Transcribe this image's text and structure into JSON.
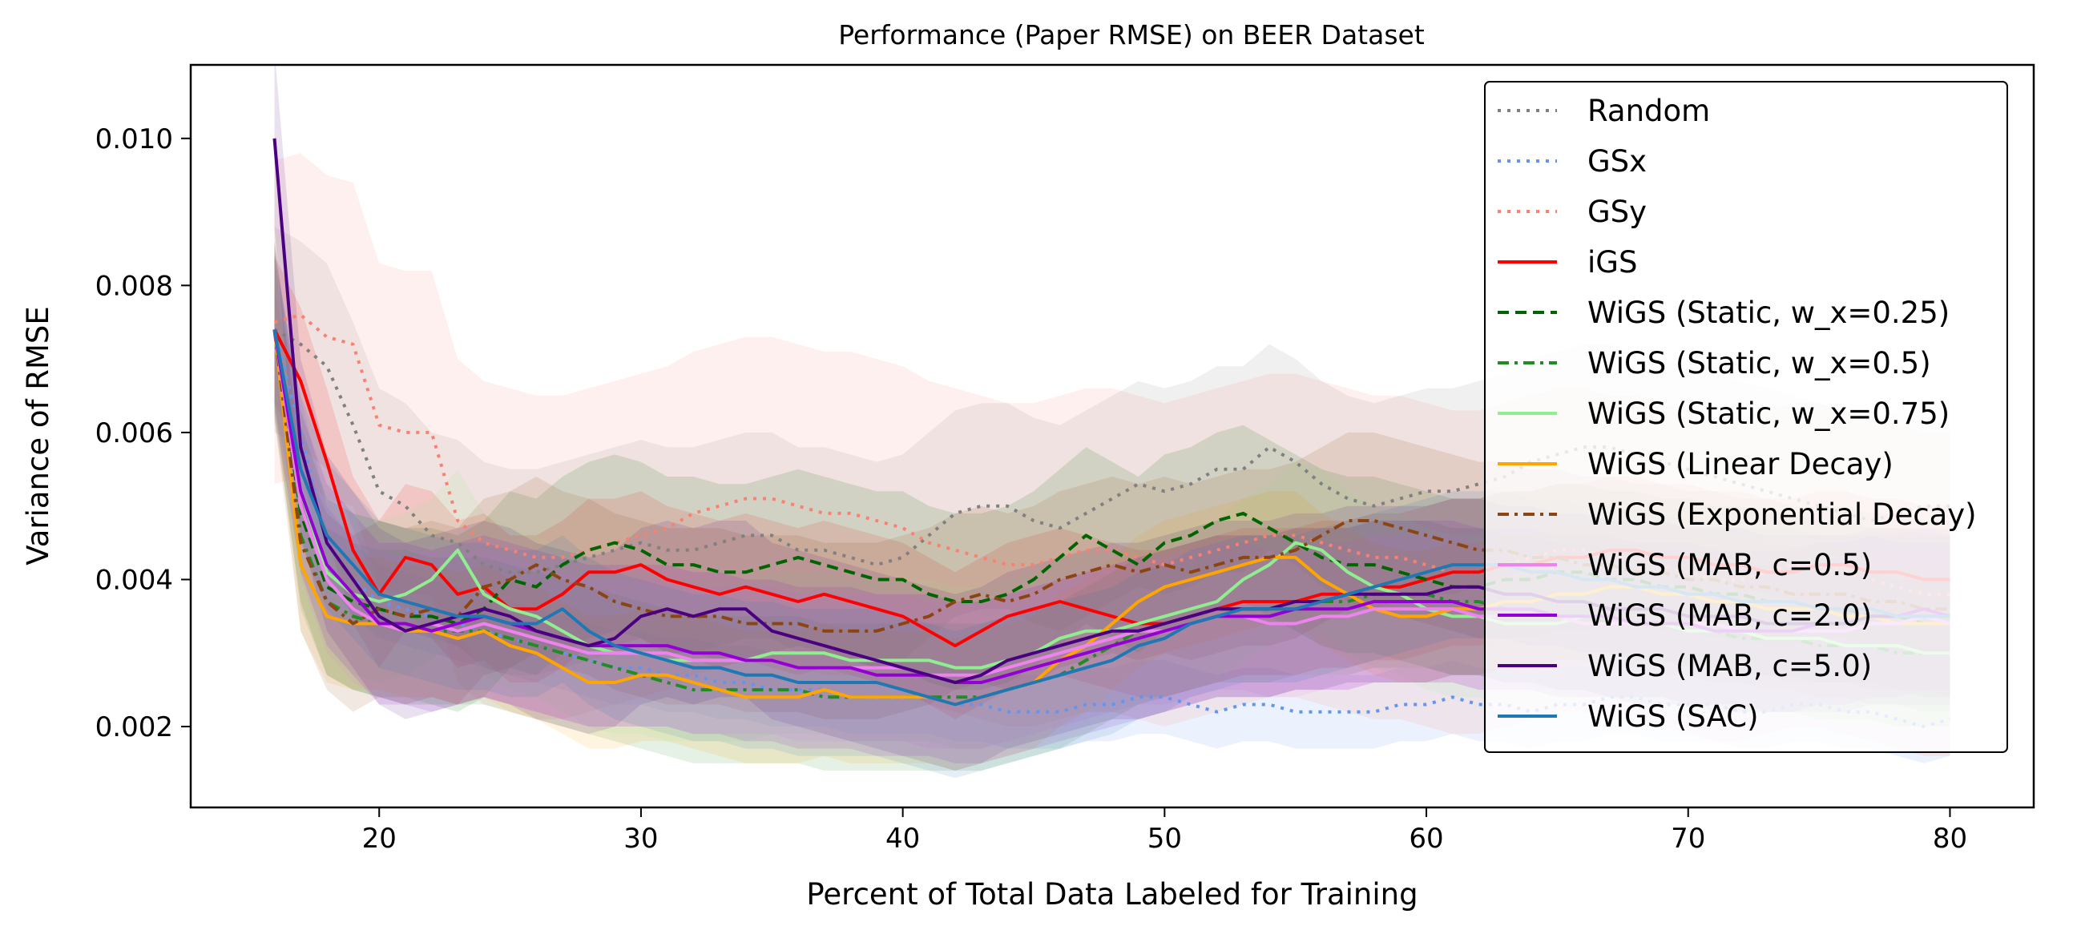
{
  "chart_data": {
    "type": "line",
    "title": "Performance (Paper RMSE) on BEER Dataset",
    "xlabel": "Percent of Total Data Labeled for Training",
    "ylabel": "Variance of RMSE",
    "xlim": [
      12.8,
      83.2
    ],
    "ylim": [
      0.0009,
      0.011
    ],
    "xticks": [
      20,
      30,
      40,
      50,
      60,
      70,
      80
    ],
    "xtick_labels": [
      "20",
      "30",
      "40",
      "50",
      "60",
      "70",
      "80"
    ],
    "yticks": [
      0.002,
      0.004,
      0.006,
      0.008,
      0.01
    ],
    "ytick_labels": [
      "0.002",
      "0.004",
      "0.006",
      "0.008",
      "0.010"
    ],
    "grid": false,
    "legend_position": "top-right",
    "x": [
      16,
      17,
      18,
      19,
      20,
      21,
      22,
      23,
      24,
      25,
      26,
      27,
      28,
      29,
      30,
      31,
      32,
      33,
      34,
      35,
      36,
      37,
      38,
      39,
      40,
      41,
      42,
      43,
      44,
      45,
      46,
      47,
      48,
      49,
      50,
      51,
      52,
      53,
      54,
      55,
      56,
      57,
      58,
      59,
      60,
      61,
      62,
      63,
      64,
      65,
      66,
      67,
      68,
      69,
      70,
      71,
      72,
      73,
      74,
      75,
      76,
      77,
      78,
      79,
      80
    ],
    "series": [
      {
        "name": "Random",
        "color": "#808080",
        "style": "dotted",
        "band_width": 0.0014,
        "values": [
          0.0074,
          0.0072,
          0.0069,
          0.0061,
          0.0052,
          0.005,
          0.0046,
          0.0045,
          0.0042,
          0.0041,
          0.0041,
          0.0042,
          0.0043,
          0.0044,
          0.0045,
          0.0044,
          0.0044,
          0.0045,
          0.0046,
          0.0046,
          0.0044,
          0.0044,
          0.0043,
          0.0042,
          0.0043,
          0.0046,
          0.0049,
          0.005,
          0.005,
          0.0048,
          0.0047,
          0.0049,
          0.0051,
          0.0053,
          0.0052,
          0.0053,
          0.0055,
          0.0055,
          0.0058,
          0.0056,
          0.0053,
          0.0051,
          0.005,
          0.0051,
          0.0052,
          0.0052,
          0.0053,
          0.0054,
          0.0056,
          0.0057,
          0.0058,
          0.0058,
          0.0057,
          0.0056,
          0.0055,
          0.0054,
          0.0053,
          0.0052,
          0.0051,
          0.005,
          0.0049,
          0.0048,
          0.0049,
          0.005,
          0.005
        ]
      },
      {
        "name": "GSx",
        "color": "#6495ed",
        "style": "dotted",
        "band_width": 0.0005,
        "values": [
          0.0074,
          0.006,
          0.0045,
          0.004,
          0.0037,
          0.0036,
          0.0035,
          0.0034,
          0.0033,
          0.0032,
          0.0031,
          0.003,
          0.0029,
          0.0028,
          0.0028,
          0.0027,
          0.0027,
          0.0026,
          0.0026,
          0.0025,
          0.0025,
          0.0025,
          0.0024,
          0.0024,
          0.0024,
          0.0024,
          0.0023,
          0.0023,
          0.0022,
          0.0022,
          0.0022,
          0.0023,
          0.0023,
          0.0024,
          0.0024,
          0.0023,
          0.0022,
          0.0023,
          0.0023,
          0.0022,
          0.0022,
          0.0022,
          0.0022,
          0.0023,
          0.0023,
          0.0024,
          0.0023,
          0.0023,
          0.0022,
          0.0023,
          0.0023,
          0.0024,
          0.0024,
          0.0023,
          0.0023,
          0.0023,
          0.0022,
          0.0022,
          0.0023,
          0.0023,
          0.0022,
          0.0022,
          0.0021,
          0.002,
          0.0021
        ]
      },
      {
        "name": "GSy",
        "color": "#fa8072",
        "style": "dotted",
        "band_width": 0.0022,
        "values": [
          0.0075,
          0.0076,
          0.0073,
          0.0072,
          0.0061,
          0.006,
          0.006,
          0.0048,
          0.0045,
          0.0044,
          0.0043,
          0.0043,
          0.0044,
          0.0045,
          0.0046,
          0.0047,
          0.0049,
          0.005,
          0.0051,
          0.0051,
          0.005,
          0.0049,
          0.0049,
          0.0048,
          0.0047,
          0.0045,
          0.0044,
          0.0043,
          0.0042,
          0.0042,
          0.0043,
          0.0044,
          0.0044,
          0.0043,
          0.0042,
          0.0043,
          0.0044,
          0.0045,
          0.0046,
          0.0046,
          0.0045,
          0.0044,
          0.0043,
          0.0043,
          0.0042,
          0.0041,
          0.0041,
          0.0042,
          0.0043,
          0.0044,
          0.0044,
          0.0043,
          0.0043,
          0.0042,
          0.0041,
          0.004,
          0.004,
          0.0041,
          0.0042,
          0.0042,
          0.0041,
          0.004,
          0.0039,
          0.0038,
          0.0038
        ]
      },
      {
        "name": "iGS",
        "color": "#ff0000",
        "style": "solid",
        "band_width": 0.001,
        "values": [
          0.0074,
          0.0067,
          0.0056,
          0.0044,
          0.0038,
          0.0043,
          0.0042,
          0.0038,
          0.0039,
          0.0036,
          0.0036,
          0.0038,
          0.0041,
          0.0041,
          0.0042,
          0.004,
          0.0039,
          0.0038,
          0.0039,
          0.0038,
          0.0037,
          0.0038,
          0.0037,
          0.0036,
          0.0035,
          0.0033,
          0.0031,
          0.0033,
          0.0035,
          0.0036,
          0.0037,
          0.0036,
          0.0035,
          0.0034,
          0.0034,
          0.0035,
          0.0036,
          0.0037,
          0.0037,
          0.0037,
          0.0038,
          0.0038,
          0.0039,
          0.0039,
          0.004,
          0.0041,
          0.0041,
          0.0042,
          0.0042,
          0.0043,
          0.0043,
          0.0044,
          0.0044,
          0.0043,
          0.0043,
          0.0042,
          0.0042,
          0.0041,
          0.0041,
          0.0042,
          0.0042,
          0.0041,
          0.0041,
          0.004,
          0.004
        ]
      },
      {
        "name": "WiGS (Static, w_x=0.25)",
        "color": "#006400",
        "style": "dashed",
        "band_width": 0.0012,
        "values": [
          0.0074,
          0.0049,
          0.0039,
          0.0037,
          0.0036,
          0.0035,
          0.0035,
          0.0034,
          0.0036,
          0.004,
          0.0039,
          0.0042,
          0.0044,
          0.0045,
          0.0044,
          0.0042,
          0.0042,
          0.0041,
          0.0041,
          0.0042,
          0.0043,
          0.0042,
          0.0041,
          0.004,
          0.004,
          0.0038,
          0.0037,
          0.0037,
          0.0038,
          0.004,
          0.0043,
          0.0046,
          0.0044,
          0.0042,
          0.0045,
          0.0046,
          0.0048,
          0.0049,
          0.0047,
          0.0045,
          0.0043,
          0.0042,
          0.0042,
          0.0041,
          0.004,
          0.0039,
          0.0039,
          0.004,
          0.004,
          0.0041,
          0.0041,
          0.004,
          0.004,
          0.0039,
          0.0039,
          0.0038,
          0.0038,
          0.0037,
          0.0037,
          0.0036,
          0.0036,
          0.0035,
          0.0035,
          0.0034,
          0.0034
        ]
      },
      {
        "name": "WiGS (Static, w_x=0.5)",
        "color": "#228b22",
        "style": "dashdot",
        "band_width": 0.001,
        "values": [
          0.0074,
          0.0046,
          0.0037,
          0.0035,
          0.0034,
          0.0034,
          0.0033,
          0.0033,
          0.0033,
          0.0032,
          0.0031,
          0.003,
          0.0029,
          0.0028,
          0.0027,
          0.0026,
          0.0025,
          0.0025,
          0.0025,
          0.0025,
          0.0025,
          0.0024,
          0.0024,
          0.0024,
          0.0024,
          0.0024,
          0.0024,
          0.0024,
          0.0025,
          0.0026,
          0.0027,
          0.0029,
          0.0031,
          0.0033,
          0.0034,
          0.0035,
          0.0036,
          0.0036,
          0.0036,
          0.0037,
          0.0037,
          0.0037,
          0.0038,
          0.0038,
          0.0038,
          0.0037,
          0.0037,
          0.0036,
          0.0036,
          0.0035,
          0.0035,
          0.0034,
          0.0034,
          0.0034,
          0.0033,
          0.0033,
          0.0032,
          0.0032,
          0.0032,
          0.0031,
          0.0031,
          0.0031,
          0.003,
          0.003,
          0.003
        ]
      },
      {
        "name": "WiGS (Static, w_x=0.75)",
        "color": "#90ee90",
        "style": "solid",
        "band_width": 0.0011,
        "values": [
          0.0074,
          0.0052,
          0.0041,
          0.0038,
          0.0037,
          0.0038,
          0.004,
          0.0044,
          0.0038,
          0.0036,
          0.0035,
          0.0033,
          0.0031,
          0.003,
          0.003,
          0.0029,
          0.0029,
          0.0029,
          0.0029,
          0.003,
          0.003,
          0.003,
          0.0029,
          0.0029,
          0.0029,
          0.0029,
          0.0028,
          0.0028,
          0.0029,
          0.003,
          0.0032,
          0.0033,
          0.0033,
          0.0034,
          0.0035,
          0.0036,
          0.0037,
          0.004,
          0.0042,
          0.0045,
          0.0044,
          0.0041,
          0.0039,
          0.0038,
          0.0036,
          0.0035,
          0.0035,
          0.0034,
          0.0034,
          0.0034,
          0.0035,
          0.0035,
          0.0034,
          0.0034,
          0.0033,
          0.0033,
          0.0033,
          0.0032,
          0.0032,
          0.0032,
          0.0031,
          0.0031,
          0.0031,
          0.003,
          0.003
        ]
      },
      {
        "name": "WiGS (Linear Decay)",
        "color": "#ffa500",
        "style": "solid",
        "band_width": 0.0009,
        "values": [
          0.0074,
          0.0042,
          0.0035,
          0.0034,
          0.0034,
          0.0033,
          0.0033,
          0.0032,
          0.0033,
          0.0031,
          0.003,
          0.0028,
          0.0026,
          0.0026,
          0.0027,
          0.0027,
          0.0026,
          0.0025,
          0.0024,
          0.0024,
          0.0024,
          0.0025,
          0.0024,
          0.0024,
          0.0024,
          0.0024,
          0.0023,
          0.0024,
          0.0025,
          0.0026,
          0.0029,
          0.0031,
          0.0034,
          0.0037,
          0.0039,
          0.004,
          0.0041,
          0.0042,
          0.0043,
          0.0043,
          0.004,
          0.0038,
          0.0036,
          0.0035,
          0.0035,
          0.0036,
          0.0036,
          0.0037,
          0.0037,
          0.0038,
          0.0038,
          0.0039,
          0.0039,
          0.0038,
          0.0038,
          0.0037,
          0.0037,
          0.0036,
          0.0036,
          0.0036,
          0.0035,
          0.0035,
          0.0034,
          0.0034,
          0.0034
        ]
      },
      {
        "name": "WiGS (Exponential Decay)",
        "color": "#8b4513",
        "style": "dashdot",
        "band_width": 0.0012,
        "values": [
          0.0074,
          0.0045,
          0.0037,
          0.0034,
          0.0036,
          0.0035,
          0.0036,
          0.0035,
          0.0039,
          0.004,
          0.0042,
          0.004,
          0.0039,
          0.0037,
          0.0036,
          0.0035,
          0.0035,
          0.0035,
          0.0034,
          0.0034,
          0.0034,
          0.0033,
          0.0033,
          0.0033,
          0.0034,
          0.0035,
          0.0037,
          0.0038,
          0.0037,
          0.0038,
          0.004,
          0.0041,
          0.0042,
          0.0041,
          0.0042,
          0.0041,
          0.0042,
          0.0043,
          0.0043,
          0.0044,
          0.0046,
          0.0048,
          0.0048,
          0.0047,
          0.0046,
          0.0045,
          0.0044,
          0.0044,
          0.0043,
          0.0043,
          0.0042,
          0.0042,
          0.0041,
          0.0041,
          0.004,
          0.004,
          0.0039,
          0.0039,
          0.0038,
          0.0038,
          0.0038,
          0.0037,
          0.0037,
          0.0036,
          0.0036
        ]
      },
      {
        "name": "WiGS (MAB, c=0.5)",
        "color": "#ee82ee",
        "style": "solid",
        "band_width": 0.001,
        "values": [
          0.0074,
          0.005,
          0.004,
          0.0036,
          0.0034,
          0.0033,
          0.0034,
          0.0033,
          0.0034,
          0.0033,
          0.0032,
          0.0031,
          0.003,
          0.003,
          0.003,
          0.003,
          0.0029,
          0.0029,
          0.0029,
          0.0029,
          0.0028,
          0.0028,
          0.0028,
          0.0028,
          0.0028,
          0.0027,
          0.0027,
          0.0027,
          0.0028,
          0.0029,
          0.003,
          0.0031,
          0.0032,
          0.0033,
          0.0033,
          0.0034,
          0.0035,
          0.0035,
          0.0034,
          0.0034,
          0.0035,
          0.0035,
          0.0036,
          0.0036,
          0.0036,
          0.0036,
          0.0035,
          0.0035,
          0.0035,
          0.0035,
          0.0034,
          0.0034,
          0.0034,
          0.0034,
          0.0034,
          0.0034,
          0.0033,
          0.0033,
          0.0033,
          0.0033,
          0.0033,
          0.0034,
          0.0034,
          0.0035,
          0.0034
        ]
      },
      {
        "name": "WiGS (MAB, c=2.0)",
        "color": "#9400d3",
        "style": "solid",
        "band_width": 0.0011,
        "values": [
          0.0074,
          0.0052,
          0.0042,
          0.0038,
          0.0034,
          0.0034,
          0.0033,
          0.0034,
          0.0035,
          0.0034,
          0.0033,
          0.0032,
          0.0031,
          0.0031,
          0.0031,
          0.0031,
          0.003,
          0.003,
          0.0029,
          0.0029,
          0.0028,
          0.0028,
          0.0028,
          0.0027,
          0.0027,
          0.0027,
          0.0026,
          0.0026,
          0.0027,
          0.0028,
          0.0029,
          0.003,
          0.0031,
          0.0032,
          0.0033,
          0.0034,
          0.0035,
          0.0035,
          0.0035,
          0.0036,
          0.0036,
          0.0036,
          0.0037,
          0.0037,
          0.0037,
          0.0037,
          0.0036,
          0.0036,
          0.0036,
          0.0035,
          0.0035,
          0.0035,
          0.0034,
          0.0034,
          0.0034,
          0.0033,
          0.0033,
          0.0033,
          0.0033,
          0.0034,
          0.0034,
          0.0035,
          0.0035,
          0.0036,
          0.0035
        ]
      },
      {
        "name": "WiGS (MAB, c=5.0)",
        "color": "#4b0082",
        "style": "solid",
        "band_width": 0.0012,
        "values": [
          0.01,
          0.0058,
          0.0045,
          0.004,
          0.0035,
          0.0033,
          0.0034,
          0.0035,
          0.0036,
          0.0035,
          0.0033,
          0.0032,
          0.0031,
          0.0032,
          0.0035,
          0.0036,
          0.0035,
          0.0036,
          0.0036,
          0.0033,
          0.0032,
          0.0031,
          0.003,
          0.0029,
          0.0028,
          0.0027,
          0.0026,
          0.0027,
          0.0029,
          0.003,
          0.0031,
          0.0032,
          0.0033,
          0.0033,
          0.0034,
          0.0035,
          0.0036,
          0.0036,
          0.0036,
          0.0037,
          0.0037,
          0.0038,
          0.0038,
          0.0038,
          0.0038,
          0.0039,
          0.0039,
          0.0038,
          0.0038,
          0.0037,
          0.0037,
          0.0036,
          0.0036,
          0.0036,
          0.0035,
          0.0035,
          0.0035,
          0.0034,
          0.0034,
          0.0034,
          0.0034,
          0.0035,
          0.0035,
          0.0035,
          0.0035
        ]
      },
      {
        "name": "WiGS (SAC)",
        "color": "#1f77b4",
        "style": "solid",
        "band_width": 0.001,
        "values": [
          0.0074,
          0.0055,
          0.0046,
          0.0042,
          0.0038,
          0.0037,
          0.0036,
          0.0035,
          0.0035,
          0.0034,
          0.0034,
          0.0036,
          0.0033,
          0.0031,
          0.003,
          0.0029,
          0.0028,
          0.0028,
          0.0027,
          0.0027,
          0.0026,
          0.0026,
          0.0026,
          0.0026,
          0.0025,
          0.0024,
          0.0023,
          0.0024,
          0.0025,
          0.0026,
          0.0027,
          0.0028,
          0.0029,
          0.0031,
          0.0032,
          0.0034,
          0.0035,
          0.0036,
          0.0036,
          0.0036,
          0.0037,
          0.0038,
          0.0039,
          0.004,
          0.0041,
          0.0042,
          0.0042,
          0.0042,
          0.0041,
          0.0041,
          0.004,
          0.004,
          0.0039,
          0.0039,
          0.0038,
          0.0038,
          0.0037,
          0.0037,
          0.0037,
          0.0036,
          0.0036,
          0.0036,
          0.0035,
          0.0035,
          0.0035
        ]
      }
    ]
  }
}
